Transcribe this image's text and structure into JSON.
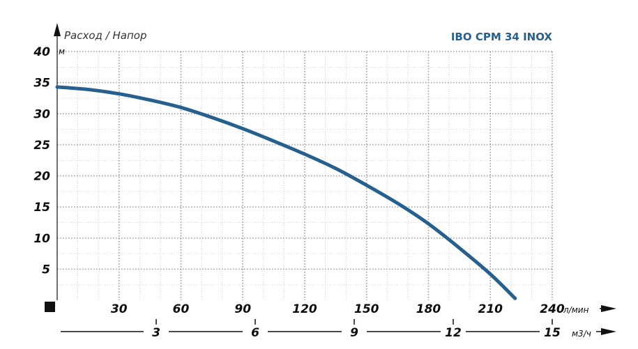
{
  "chart_data": {
    "type": "line",
    "title": "IBO CPM 34 INOX",
    "ylabel": "Расход / Напор",
    "y_unit": "м",
    "x_unit": "л/мин",
    "x2_unit": "м3/ч",
    "ylim": [
      0,
      40
    ],
    "xlim": [
      0,
      240
    ],
    "y_ticks": [
      "5",
      "10",
      "15",
      "20",
      "25",
      "30",
      "35",
      "40"
    ],
    "x_ticks": [
      "30",
      "60",
      "90",
      "120",
      "150",
      "180",
      "210",
      "240"
    ],
    "x2_ticks": [
      "3",
      "6",
      "9",
      "12",
      "15"
    ],
    "grid": true,
    "series": [
      {
        "x": [
          0,
          15,
          30,
          45,
          60,
          75,
          90,
          105,
          120,
          135,
          150,
          165,
          180,
          195,
          210,
          222
        ],
        "y": [
          34.3,
          33.9,
          33.2,
          32.2,
          31.0,
          29.4,
          27.6,
          25.6,
          23.5,
          21.2,
          18.5,
          15.6,
          12.3,
          8.4,
          4.2,
          0.3
        ]
      }
    ],
    "colors": {
      "curve": "#25608f",
      "title": "#25608f",
      "axis": "#111111",
      "grid": "#999999"
    }
  }
}
